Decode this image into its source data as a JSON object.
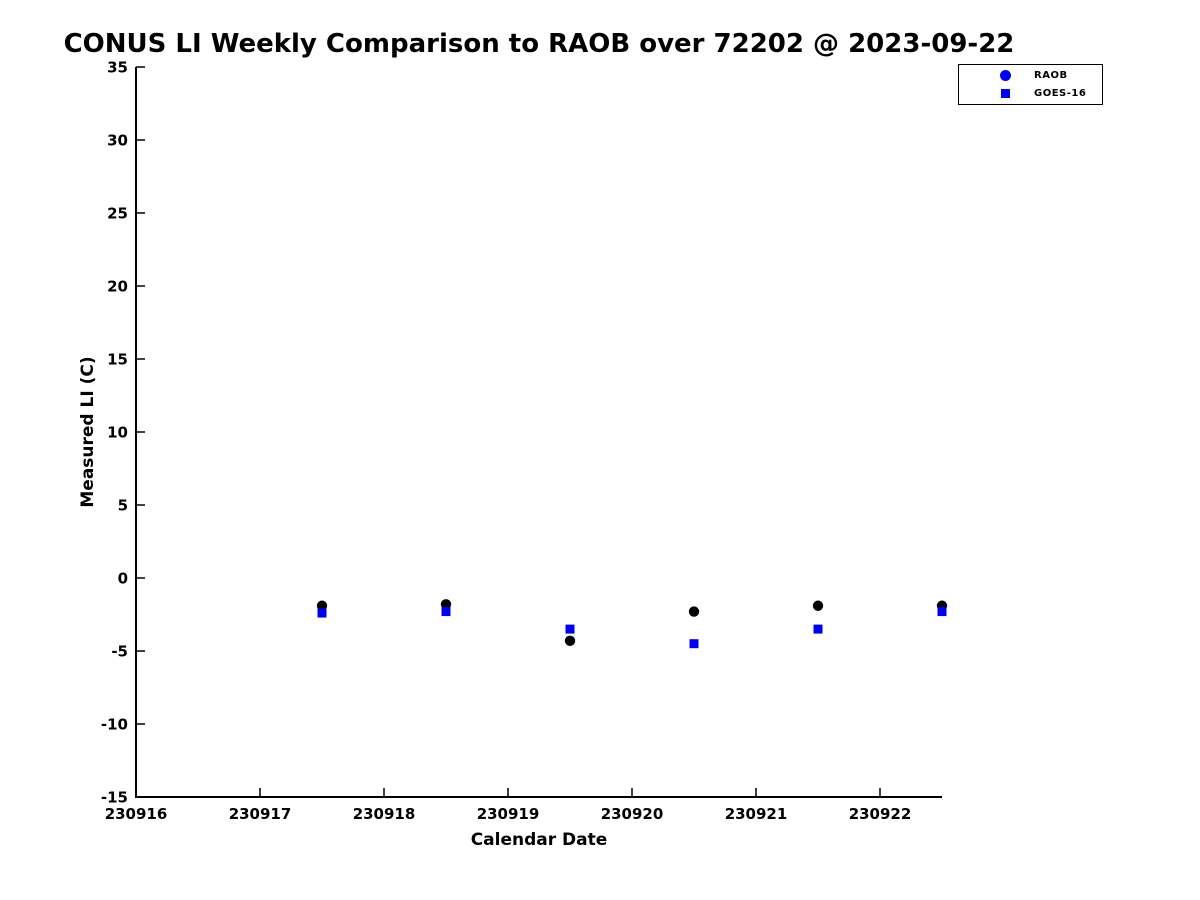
{
  "title": "CONUS LI Weekly Comparison to RAOB over 72202 @ 2023-09-22",
  "axes": {
    "xlabel": "Calendar Date",
    "ylabel": "Measured LI (C)"
  },
  "legend": {
    "items": [
      {
        "label": "RAOB",
        "marker": "circle",
        "color": "#0000EE"
      },
      {
        "label": "GOES-16",
        "marker": "square",
        "color": "#0000EE"
      }
    ]
  },
  "chart_data": {
    "type": "scatter",
    "title": "CONUS LI Weekly Comparison to RAOB over 72202 @ 2023-09-22",
    "xlabel": "Calendar Date",
    "ylabel": "Measured LI (C)",
    "xlim": [
      230916,
      230922.5
    ],
    "ylim": [
      -15,
      35
    ],
    "xticks": [
      230916,
      230917,
      230918,
      230919,
      230920,
      230921,
      230922
    ],
    "xtick_labels": [
      "230916",
      "230917",
      "230918",
      "230919",
      "230920",
      "230921",
      "230922"
    ],
    "yticks": [
      -15,
      -10,
      -5,
      0,
      5,
      10,
      15,
      20,
      25,
      30,
      35
    ],
    "ytick_labels": [
      "-15",
      "-10",
      "-5",
      "0",
      "5",
      "10",
      "15",
      "20",
      "25",
      "30",
      "35"
    ],
    "grid": false,
    "legend_position": "top-right",
    "axis_color": "#000000",
    "series": [
      {
        "name": "RAOB",
        "marker": "circle",
        "plot_color": "#000000",
        "legend_color": "#0000EE",
        "x": [
          230917.5,
          230918.5,
          230919.5,
          230920.5,
          230921.5,
          230922.5
        ],
        "y": [
          -1.9,
          -1.8,
          -4.3,
          -2.3,
          -1.9,
          -1.9
        ]
      },
      {
        "name": "GOES-16",
        "marker": "square",
        "plot_color": "#0000EE",
        "legend_color": "#0000EE",
        "x": [
          230917.5,
          230918.5,
          230919.5,
          230920.5,
          230921.5,
          230922.5
        ],
        "y": [
          -2.4,
          -2.3,
          -3.5,
          -4.5,
          -3.5,
          -2.3
        ]
      }
    ]
  }
}
